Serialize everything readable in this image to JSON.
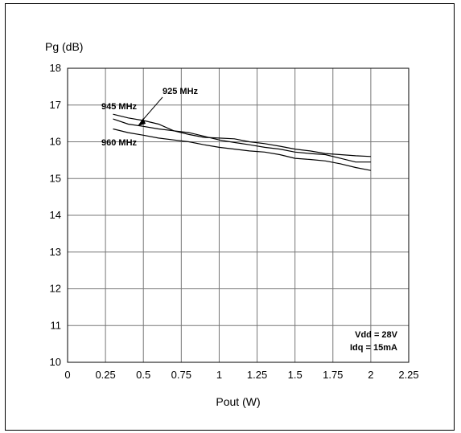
{
  "chart_data": {
    "type": "line",
    "xlabel": "Pout (W)",
    "ylabel": "Pg (dB)",
    "xlim": [
      0,
      2.25
    ],
    "ylim": [
      10,
      18
    ],
    "xticks": [
      "0",
      "0.25",
      "0.5",
      "0.75",
      "1",
      "1.25",
      "1.5",
      "1.75",
      "2",
      "2.25"
    ],
    "yticks": [
      "10",
      "11",
      "12",
      "13",
      "14",
      "15",
      "16",
      "17",
      "18"
    ],
    "grid": true,
    "series": [
      {
        "name": "925 MHz",
        "x": [
          0.3,
          0.4,
          0.5,
          0.6,
          0.7,
          0.8,
          0.9,
          1.0,
          1.1,
          1.2,
          1.3,
          1.4,
          1.5,
          1.6,
          1.7,
          1.8,
          1.9,
          2.0
        ],
        "y": [
          16.75,
          16.65,
          16.58,
          16.48,
          16.3,
          16.2,
          16.12,
          16.1,
          16.08,
          16.0,
          15.95,
          15.88,
          15.8,
          15.75,
          15.68,
          15.65,
          15.62,
          15.6
        ]
      },
      {
        "name": "945 MHz",
        "x": [
          0.3,
          0.4,
          0.5,
          0.6,
          0.7,
          0.8,
          0.9,
          1.0,
          1.1,
          1.2,
          1.3,
          1.4,
          1.5,
          1.6,
          1.7,
          1.8,
          1.9,
          2.0
        ],
        "y": [
          16.62,
          16.48,
          16.42,
          16.35,
          16.3,
          16.25,
          16.15,
          16.05,
          15.98,
          15.92,
          15.85,
          15.8,
          15.72,
          15.68,
          15.65,
          15.55,
          15.45,
          15.45
        ]
      },
      {
        "name": "960 MHz",
        "x": [
          0.3,
          0.4,
          0.5,
          0.6,
          0.7,
          0.8,
          0.9,
          1.0,
          1.1,
          1.2,
          1.3,
          1.4,
          1.5,
          1.6,
          1.7,
          1.8,
          1.9,
          2.0
        ],
        "y": [
          16.35,
          16.25,
          16.18,
          16.1,
          16.05,
          16.0,
          15.92,
          15.85,
          15.8,
          15.75,
          15.72,
          15.65,
          15.55,
          15.52,
          15.48,
          15.4,
          15.3,
          15.22
        ]
      }
    ],
    "annotations": {
      "series_labels": [
        "925 MHz",
        "945 MHz",
        "960 MHz"
      ],
      "conditions": [
        "Vdd = 28V",
        "Idq = 15mA"
      ]
    }
  }
}
